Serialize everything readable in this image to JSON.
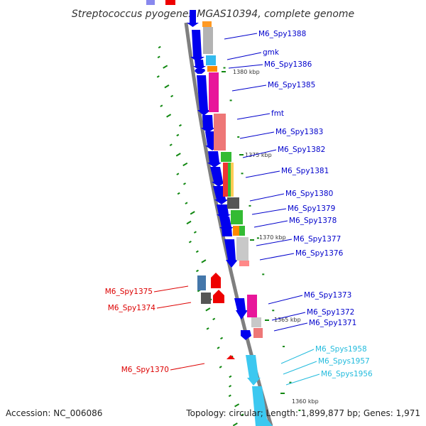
{
  "title": "Streptococcus pyogenes MGAS10394, complete genome",
  "footer": {
    "accession": "Accession: NC_006086",
    "summary": "Topology: circular; Length: 1,899,877 bp; Genes: 1,971"
  },
  "colors": {
    "backbone": "#7f7f7f",
    "forward_strand": "#0000ee",
    "reverse_strand": "#ee0000",
    "rna_genes": "#3cc8f0",
    "label_forward": "#0000cc",
    "label_reverse": "#dd0000",
    "label_rna": "#22bbdd",
    "gc_ticks": "#118811"
  },
  "kbp_marks": [
    "1380 kbp",
    "1375 kbp",
    "1370 kbp",
    "1365 kbp",
    "1360 kbp"
  ],
  "gene_labels": [
    {
      "id": "M6_Spy1388",
      "name": "M6_Spy1388",
      "strand": "forward"
    },
    {
      "id": "gmk",
      "name": "gmk",
      "strand": "forward"
    },
    {
      "id": "M6_Spy1386",
      "name": "M6_Spy1386",
      "strand": "forward"
    },
    {
      "id": "M6_Spy1385",
      "name": "M6_Spy1385",
      "strand": "forward"
    },
    {
      "id": "fmt",
      "name": "fmt",
      "strand": "forward"
    },
    {
      "id": "M6_Spy1383",
      "name": "M6_Spy1383",
      "strand": "forward"
    },
    {
      "id": "M6_Spy1382",
      "name": "M6_Spy1382",
      "strand": "forward"
    },
    {
      "id": "M6_Spy1381",
      "name": "M6_Spy1381",
      "strand": "forward"
    },
    {
      "id": "M6_Spy1380",
      "name": "M6_Spy1380",
      "strand": "forward"
    },
    {
      "id": "M6_Spy1379",
      "name": "M6_Spy1379",
      "strand": "forward"
    },
    {
      "id": "M6_Spy1378",
      "name": "M6_Spy1378",
      "strand": "forward"
    },
    {
      "id": "M6_Spy1377",
      "name": "M6_Spy1377",
      "strand": "forward"
    },
    {
      "id": "M6_Spy1376",
      "name": "M6_Spy1376",
      "strand": "forward"
    },
    {
      "id": "M6_Spy1375",
      "name": "M6_Spy1375",
      "strand": "reverse"
    },
    {
      "id": "M6_Spy1374",
      "name": "M6_Spy1374",
      "strand": "reverse"
    },
    {
      "id": "M6_Spy1373",
      "name": "M6_Spy1373",
      "strand": "forward"
    },
    {
      "id": "M6_Spy1372",
      "name": "M6_Spy1372",
      "strand": "forward"
    },
    {
      "id": "M6_Spy1371",
      "name": "M6_Spy1371",
      "strand": "forward"
    },
    {
      "id": "M6_Spys1958",
      "name": "M6_Spys1958",
      "strand": "rna"
    },
    {
      "id": "M6_Spys1957",
      "name": "M6_Spys1957",
      "strand": "rna"
    },
    {
      "id": "M6_Spys1956",
      "name": "M6_Spys1956",
      "strand": "rna"
    },
    {
      "id": "M6_Spy1370",
      "name": "M6_Spy1370",
      "strand": "reverse"
    }
  ]
}
